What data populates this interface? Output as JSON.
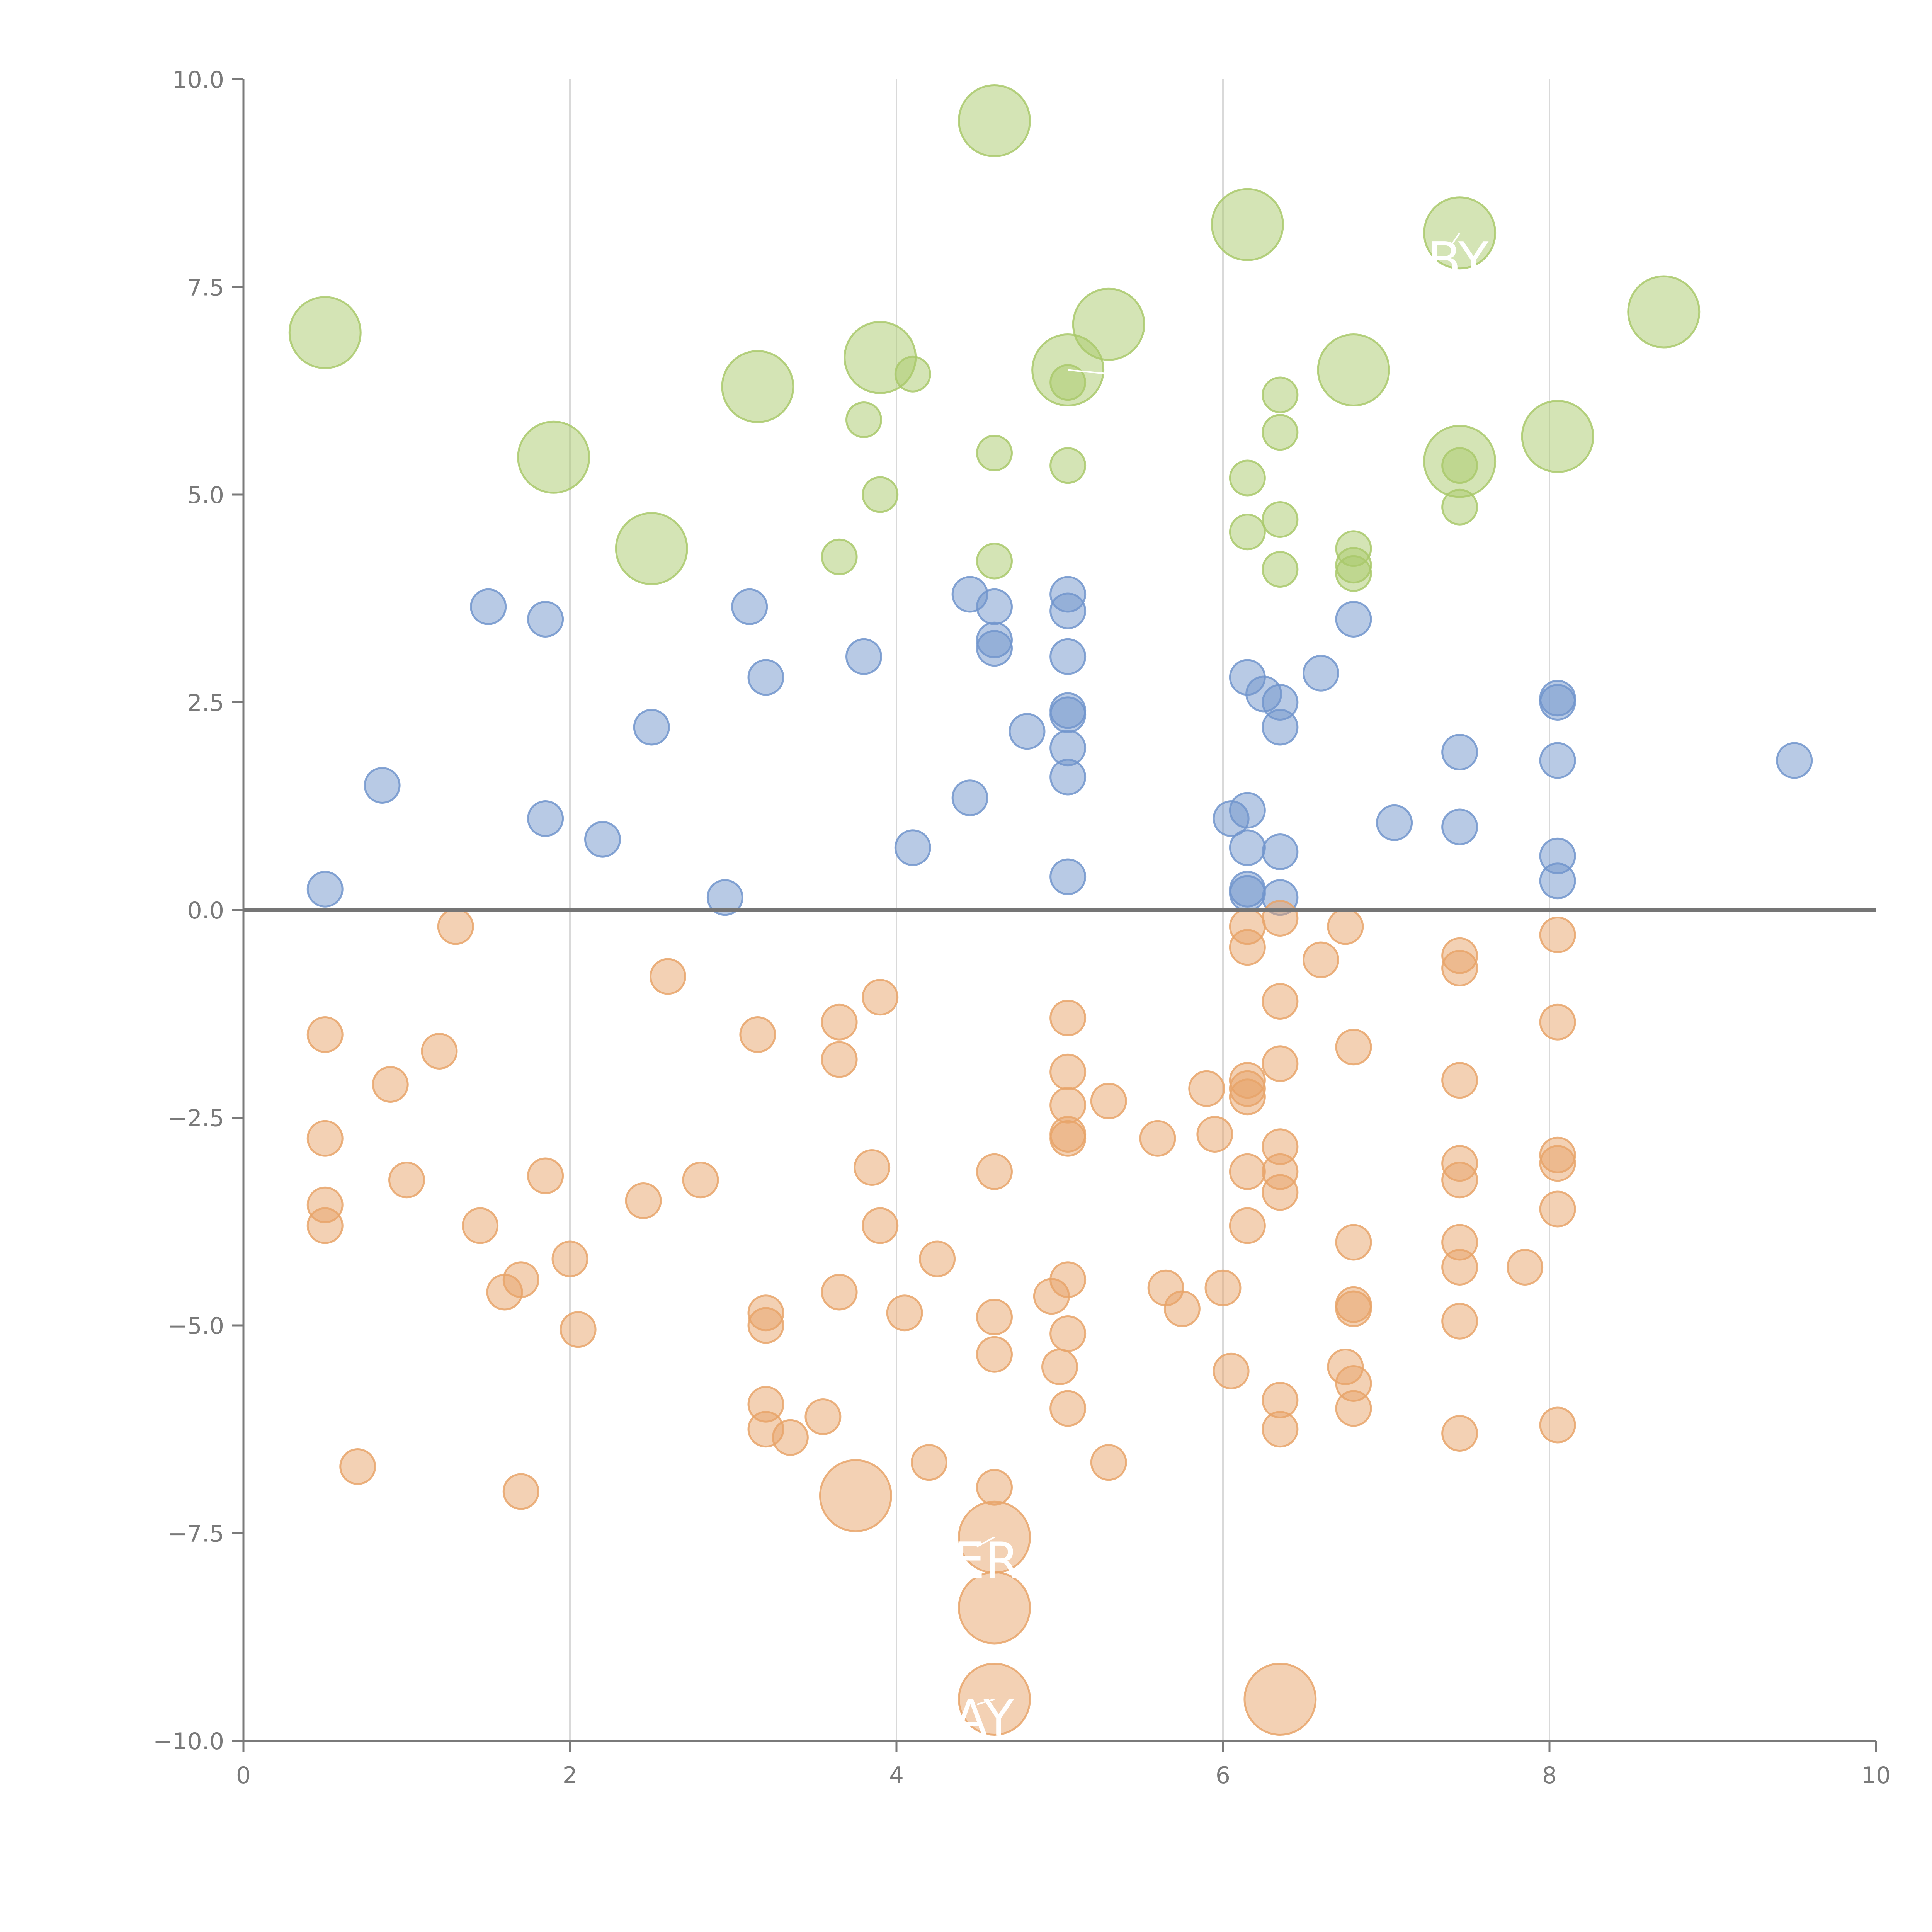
{
  "chart_data": {
    "type": "scatter",
    "title": "",
    "xlabel": "",
    "ylabel": "",
    "xlim": [
      0,
      10
    ],
    "ylim": [
      -10,
      10
    ],
    "x_ticks": [
      "0",
      "2",
      "4",
      "6",
      "8",
      "10"
    ],
    "y_ticks": [
      "−10.0",
      "−7.5",
      "−5.0",
      "−2.5",
      "0.0",
      "2.5",
      "5.0",
      "7.5",
      "10.0"
    ],
    "x_tick_values": [
      0,
      2,
      4,
      6,
      8,
      10
    ],
    "y_tick_values": [
      -10,
      -7.5,
      -5,
      -2.5,
      0,
      2.5,
      5,
      7.5,
      10
    ],
    "vertical_gridlines": [
      2,
      4,
      6,
      8
    ],
    "zero_line": 0,
    "colors": {
      "green": "#a9c96b",
      "blue": "#7195cc",
      "orange": "#e8a46a",
      "label": "#ffffff",
      "axis": "#7a7a7a",
      "grid": "#d9d9d9",
      "zero_line": "#757575"
    },
    "series": [
      {
        "name": "green-small",
        "color": "#a9c96b",
        "size": "small",
        "points": [
          [
            3.8,
            5.9
          ],
          [
            4.1,
            6.45
          ],
          [
            5.05,
            6.35
          ],
          [
            3.9,
            5.0
          ],
          [
            3.65,
            4.25
          ],
          [
            4.6,
            5.5
          ],
          [
            5.05,
            5.35
          ],
          [
            4.6,
            4.2
          ],
          [
            6.15,
            5.2
          ],
          [
            6.15,
            4.55
          ],
          [
            6.35,
            6.2
          ],
          [
            6.35,
            5.75
          ],
          [
            6.35,
            4.7
          ],
          [
            6.35,
            4.1
          ],
          [
            6.8,
            4.35
          ],
          [
            6.8,
            4.15
          ],
          [
            6.8,
            4.05
          ],
          [
            7.45,
            5.35
          ],
          [
            7.45,
            4.85
          ]
        ]
      },
      {
        "name": "green-large",
        "color": "#a9c96b",
        "size": "large",
        "points": [
          [
            0.5,
            6.95
          ],
          [
            1.9,
            5.45
          ],
          [
            2.5,
            4.35
          ],
          [
            3.15,
            6.3
          ],
          [
            3.9,
            6.65
          ],
          [
            4.6,
            9.5
          ],
          [
            5.05,
            6.5
          ],
          [
            5.3,
            7.05
          ],
          [
            6.15,
            8.25
          ],
          [
            6.8,
            6.5
          ],
          [
            7.45,
            8.15
          ],
          [
            7.45,
            5.4
          ],
          [
            8.05,
            5.7
          ],
          [
            8.7,
            7.2
          ]
        ]
      },
      {
        "name": "blue",
        "color": "#7195cc",
        "size": "small",
        "points": [
          [
            0.5,
            0.25
          ],
          [
            0.85,
            1.5
          ],
          [
            1.5,
            3.65
          ],
          [
            1.85,
            3.5
          ],
          [
            1.85,
            1.1
          ],
          [
            2.2,
            0.85
          ],
          [
            2.5,
            2.2
          ],
          [
            2.95,
            0.15
          ],
          [
            3.1,
            3.65
          ],
          [
            3.2,
            2.8
          ],
          [
            3.8,
            3.05
          ],
          [
            4.1,
            0.75
          ],
          [
            4.45,
            3.8
          ],
          [
            4.45,
            1.35
          ],
          [
            4.6,
            3.65
          ],
          [
            4.6,
            3.25
          ],
          [
            4.6,
            3.15
          ],
          [
            4.8,
            2.15
          ],
          [
            5.05,
            3.8
          ],
          [
            5.05,
            3.6
          ],
          [
            5.05,
            3.05
          ],
          [
            5.05,
            2.4
          ],
          [
            5.05,
            2.35
          ],
          [
            5.05,
            1.95
          ],
          [
            5.05,
            1.6
          ],
          [
            5.05,
            0.4
          ],
          [
            6.05,
            1.1
          ],
          [
            6.15,
            2.8
          ],
          [
            6.15,
            1.2
          ],
          [
            6.15,
            0.75
          ],
          [
            6.15,
            0.25
          ],
          [
            6.15,
            0.2
          ],
          [
            6.25,
            2.6
          ],
          [
            6.35,
            2.5
          ],
          [
            6.35,
            2.2
          ],
          [
            6.35,
            0.7
          ],
          [
            6.35,
            0.15
          ],
          [
            6.6,
            2.85
          ],
          [
            6.8,
            3.5
          ],
          [
            7.05,
            1.05
          ],
          [
            7.45,
            1.9
          ],
          [
            7.45,
            1.0
          ],
          [
            8.05,
            2.55
          ],
          [
            8.05,
            2.5
          ],
          [
            8.05,
            1.8
          ],
          [
            8.05,
            0.65
          ],
          [
            8.05,
            0.35
          ],
          [
            9.5,
            1.8
          ]
        ]
      },
      {
        "name": "orange-small",
        "color": "#e8a46a",
        "size": "small",
        "points": [
          [
            0.5,
            -1.5
          ],
          [
            0.5,
            -2.75
          ],
          [
            0.5,
            -3.55
          ],
          [
            0.5,
            -3.8
          ],
          [
            0.7,
            -6.7
          ],
          [
            0.9,
            -2.1
          ],
          [
            1.0,
            -3.25
          ],
          [
            1.2,
            -1.7
          ],
          [
            1.3,
            -0.2
          ],
          [
            1.45,
            -3.8
          ],
          [
            1.6,
            -4.6
          ],
          [
            1.7,
            -4.45
          ],
          [
            1.7,
            -7.0
          ],
          [
            1.85,
            -3.2
          ],
          [
            2.0,
            -4.2
          ],
          [
            2.05,
            -5.05
          ],
          [
            2.45,
            -3.5
          ],
          [
            2.6,
            -0.8
          ],
          [
            2.8,
            -3.25
          ],
          [
            3.15,
            -1.5
          ],
          [
            3.2,
            -4.85
          ],
          [
            3.2,
            -5.0
          ],
          [
            3.2,
            -5.95
          ],
          [
            3.2,
            -6.25
          ],
          [
            3.35,
            -6.35
          ],
          [
            3.55,
            -6.1
          ],
          [
            3.65,
            -1.35
          ],
          [
            3.65,
            -1.8
          ],
          [
            3.65,
            -4.6
          ],
          [
            3.85,
            -3.1
          ],
          [
            3.9,
            -1.05
          ],
          [
            3.9,
            -3.8
          ],
          [
            4.05,
            -4.85
          ],
          [
            4.2,
            -6.65
          ],
          [
            4.25,
            -4.2
          ],
          [
            4.6,
            -3.15
          ],
          [
            4.6,
            -4.9
          ],
          [
            4.6,
            -5.35
          ],
          [
            4.6,
            -6.95
          ],
          [
            4.95,
            -4.65
          ],
          [
            5.0,
            -5.5
          ],
          [
            5.05,
            -1.3
          ],
          [
            5.05,
            -1.95
          ],
          [
            5.05,
            -2.35
          ],
          [
            5.05,
            -2.7
          ],
          [
            5.05,
            -2.75
          ],
          [
            5.05,
            -4.45
          ],
          [
            5.05,
            -5.1
          ],
          [
            5.05,
            -6.0
          ],
          [
            5.3,
            -2.3
          ],
          [
            5.3,
            -6.65
          ],
          [
            5.6,
            -2.75
          ],
          [
            5.65,
            -4.55
          ],
          [
            5.75,
            -4.8
          ],
          [
            5.9,
            -2.15
          ],
          [
            5.95,
            -2.7
          ],
          [
            6.0,
            -4.55
          ],
          [
            6.05,
            -5.55
          ],
          [
            6.15,
            -0.2
          ],
          [
            6.15,
            -0.45
          ],
          [
            6.15,
            -2.05
          ],
          [
            6.15,
            -2.15
          ],
          [
            6.15,
            -2.25
          ],
          [
            6.15,
            -3.15
          ],
          [
            6.15,
            -3.8
          ],
          [
            6.35,
            -0.1
          ],
          [
            6.35,
            -1.1
          ],
          [
            6.35,
            -1.85
          ],
          [
            6.35,
            -2.85
          ],
          [
            6.35,
            -3.15
          ],
          [
            6.35,
            -3.4
          ],
          [
            6.35,
            -5.9
          ],
          [
            6.35,
            -6.25
          ],
          [
            6.6,
            -0.6
          ],
          [
            6.75,
            -0.2
          ],
          [
            6.75,
            -5.5
          ],
          [
            6.8,
            -1.65
          ],
          [
            6.8,
            -4.0
          ],
          [
            6.8,
            -4.75
          ],
          [
            6.8,
            -4.8
          ],
          [
            6.8,
            -5.7
          ],
          [
            6.8,
            -6.0
          ],
          [
            7.45,
            -0.55
          ],
          [
            7.45,
            -0.7
          ],
          [
            7.45,
            -2.05
          ],
          [
            7.45,
            -3.05
          ],
          [
            7.45,
            -3.25
          ],
          [
            7.45,
            -4.0
          ],
          [
            7.45,
            -4.3
          ],
          [
            7.45,
            -4.95
          ],
          [
            7.45,
            -6.3
          ],
          [
            7.85,
            -4.3
          ],
          [
            8.05,
            -0.3
          ],
          [
            8.05,
            -1.35
          ],
          [
            8.05,
            -2.95
          ],
          [
            8.05,
            -3.05
          ],
          [
            8.05,
            -3.6
          ],
          [
            8.05,
            -6.2
          ]
        ]
      },
      {
        "name": "orange-large",
        "color": "#e8a46a",
        "size": "large",
        "points": [
          [
            3.75,
            -7.05
          ],
          [
            4.6,
            -7.55
          ],
          [
            4.6,
            -8.4
          ],
          [
            4.6,
            -9.5
          ],
          [
            6.35,
            -9.5
          ]
        ]
      }
    ],
    "annotations": [
      {
        "text": "BY",
        "x": 7.25,
        "y": 7.8,
        "target": [
          7.45,
          8.15
        ]
      },
      {
        "text": "E",
        "x": 5.25,
        "y": 6.25,
        "target": [
          5.05,
          6.5
        ]
      },
      {
        "text": "ER",
        "x": 4.35,
        "y": -7.85,
        "target": [
          4.6,
          -7.55
        ]
      },
      {
        "text": "AY",
        "x": 4.35,
        "y": -9.75,
        "target": [
          4.6,
          -9.5
        ]
      }
    ]
  }
}
